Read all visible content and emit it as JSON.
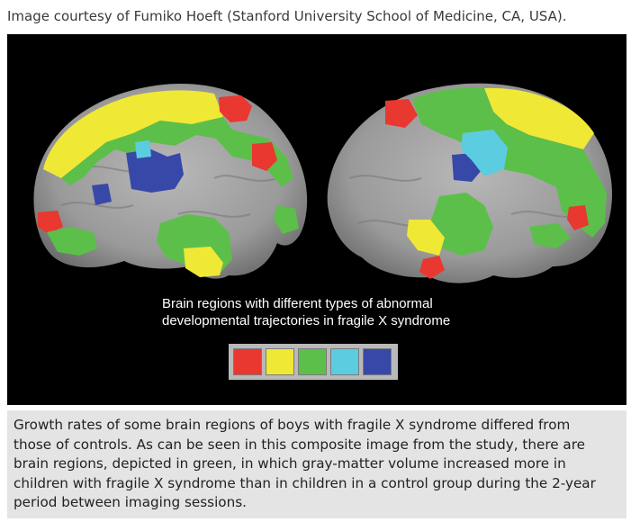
{
  "credit": "Image courtesy of Fumiko Hoeft (Stanford University School of Medicine, CA, USA).",
  "figure": {
    "caption_lines": [
      "Brain regions with different types of abnormal",
      "developmental trajectories in fragile X syndrome"
    ],
    "legend_colors": [
      "#e8382f",
      "#efe935",
      "#5cbf4a",
      "#5ccde0",
      "#3848a8"
    ],
    "region_colors": {
      "brain": "#9c9c9c",
      "red": "#e8382f",
      "yellow": "#efe935",
      "green": "#5cbf4a",
      "cyan": "#5ccde0",
      "blue": "#3848a8"
    }
  },
  "summary_lines": [
    "Growth rates of some brain regions of boys with fragile X syndrome differed from",
    "those of controls. As can be seen in this composite image from the study, there are",
    "brain regions, depicted in green, in which gray-matter volume increased more in",
    "children with fragile X syndrome than in children in a control group during the 2-year",
    "period between imaging sessions."
  ]
}
